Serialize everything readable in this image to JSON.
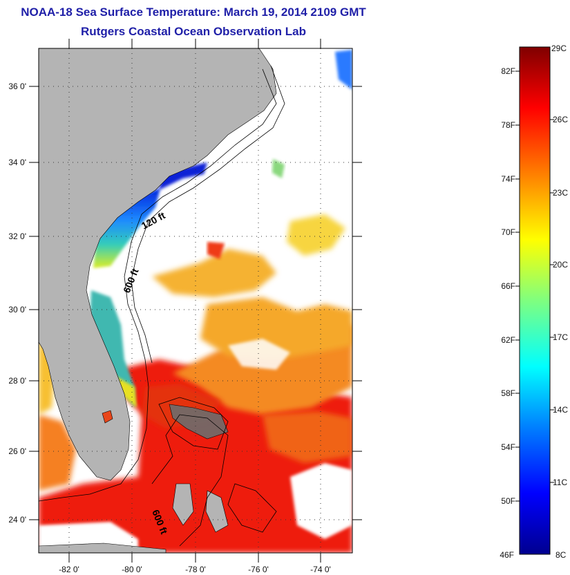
{
  "header": {
    "title": "NOAA-18 Sea Surface Temperature:  March 19, 2014 2109 GMT",
    "subtitle": "Rutgers Coastal Ocean Observation Lab"
  },
  "map": {
    "lat_labels": [
      "36 0'",
      "34 0'",
      "32 0'",
      "30 0'",
      "28 0'",
      "26 0'",
      "24 0'"
    ],
    "lon_labels": [
      "-82 0'",
      "-80 0'",
      "-78 0'",
      "-76 0'",
      "-74 0'"
    ],
    "contour_labels": [
      "120 ft",
      "600 ft",
      "600 ft"
    ],
    "land_color": "#b4b4b4"
  },
  "colorbar": {
    "fahrenheit_labels": [
      "82F",
      "78F",
      "74F",
      "70F",
      "66F",
      "62F",
      "58F",
      "54F",
      "50F",
      "46F"
    ],
    "celsius_labels": [
      "29C",
      "26C",
      "23C",
      "20C",
      "17C",
      "14C",
      "11C",
      "8C"
    ],
    "colors": [
      "#00008f",
      "#0000ff",
      "#007fff",
      "#00ffff",
      "#7fff7f",
      "#ffff00",
      "#ff7f00",
      "#ff0000",
      "#7f0000"
    ]
  }
}
